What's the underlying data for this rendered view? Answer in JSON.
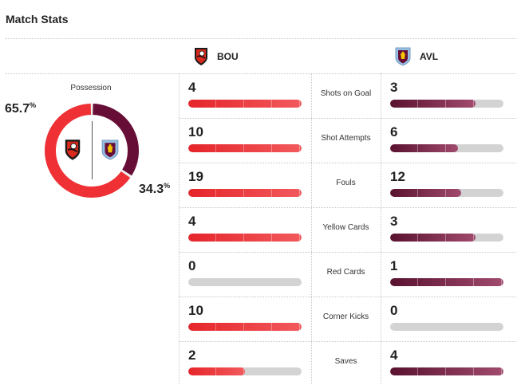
{
  "section_title": "Match Stats",
  "home": {
    "abbr": "BOU",
    "crest_icon": "bournemouth-crest-icon",
    "color": "#ef3035"
  },
  "away": {
    "abbr": "AVL",
    "crest_icon": "aston-villa-crest-icon",
    "color": "#670e36"
  },
  "possession": {
    "label": "Possession",
    "home": 65.7,
    "away": 34.3,
    "home_text": "65.7",
    "away_text": "34.3",
    "unit": "%"
  },
  "stats": [
    {
      "name": "Shots on Goal",
      "home": 4,
      "away": 3,
      "home_fraction": 1.0,
      "away_fraction": 0.75
    },
    {
      "name": "Shot Attempts",
      "home": 10,
      "away": 6,
      "home_fraction": 1.0,
      "away_fraction": 0.6
    },
    {
      "name": "Fouls",
      "home": 19,
      "away": 12,
      "home_fraction": 1.0,
      "away_fraction": 0.63
    },
    {
      "name": "Yellow Cards",
      "home": 4,
      "away": 3,
      "home_fraction": 1.0,
      "away_fraction": 0.75
    },
    {
      "name": "Red Cards",
      "home": 0,
      "away": 1,
      "home_fraction": 0.0,
      "away_fraction": 1.0
    },
    {
      "name": "Corner Kicks",
      "home": 10,
      "away": 0,
      "home_fraction": 1.0,
      "away_fraction": 0.0
    },
    {
      "name": "Saves",
      "home": 2,
      "away": 4,
      "home_fraction": 0.5,
      "away_fraction": 1.0
    }
  ]
}
